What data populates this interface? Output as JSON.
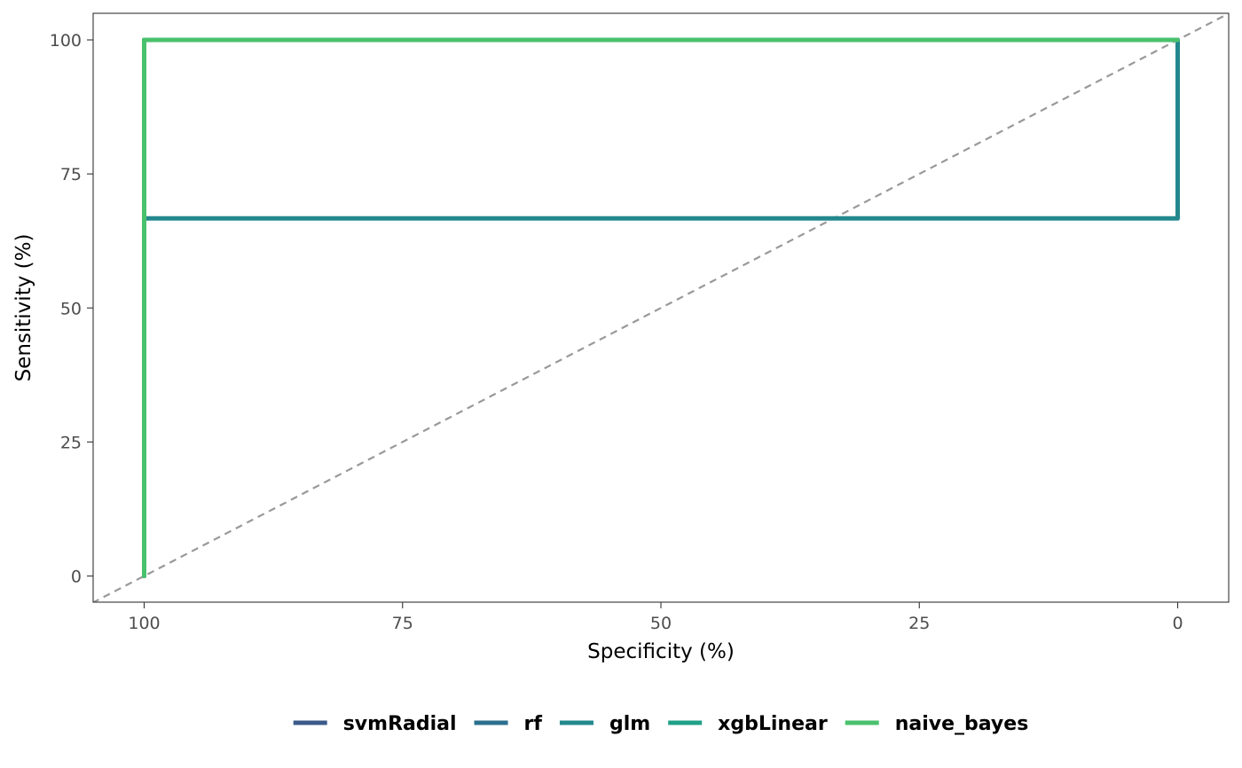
{
  "chart_data": {
    "type": "line",
    "title": "",
    "xlabel": "Specificity (%)",
    "ylabel": "Sensitivity (%)",
    "xlim": [
      100,
      0
    ],
    "ylim": [
      0,
      100
    ],
    "x_reversed": true,
    "x_ticks": [
      100,
      75,
      50,
      25,
      0
    ],
    "y_ticks": [
      0,
      25,
      50,
      75,
      100
    ],
    "x_tick_labels": [
      "100",
      "75",
      "50",
      "25",
      "0"
    ],
    "y_tick_labels": [
      "0",
      "25",
      "50",
      "75",
      "100"
    ],
    "grid": false,
    "legend_position": "bottom",
    "reference_line": {
      "from": [
        105,
        -5
      ],
      "to": [
        -5,
        105
      ],
      "style": "dashed",
      "color": "#999999"
    },
    "series": [
      {
        "name": "svmRadial",
        "color": "#3b5a8a",
        "x": [
          100,
          100,
          0,
          0
        ],
        "y": [
          0,
          100,
          100,
          100
        ]
      },
      {
        "name": "rf",
        "color": "#2b6f8e",
        "x": [
          100,
          100,
          0,
          0
        ],
        "y": [
          0,
          100,
          100,
          100
        ]
      },
      {
        "name": "glm",
        "color": "#23888e",
        "x": [
          100,
          100,
          0,
          0
        ],
        "y": [
          0,
          66.7,
          66.7,
          100
        ]
      },
      {
        "name": "xgbLinear",
        "color": "#1fa187",
        "x": [
          100,
          100,
          0,
          0
        ],
        "y": [
          0,
          100,
          100,
          100
        ]
      },
      {
        "name": "naive_bayes",
        "color": "#4ac16d",
        "x": [
          100,
          100,
          0,
          0
        ],
        "y": [
          0,
          100,
          100,
          100
        ]
      }
    ]
  }
}
